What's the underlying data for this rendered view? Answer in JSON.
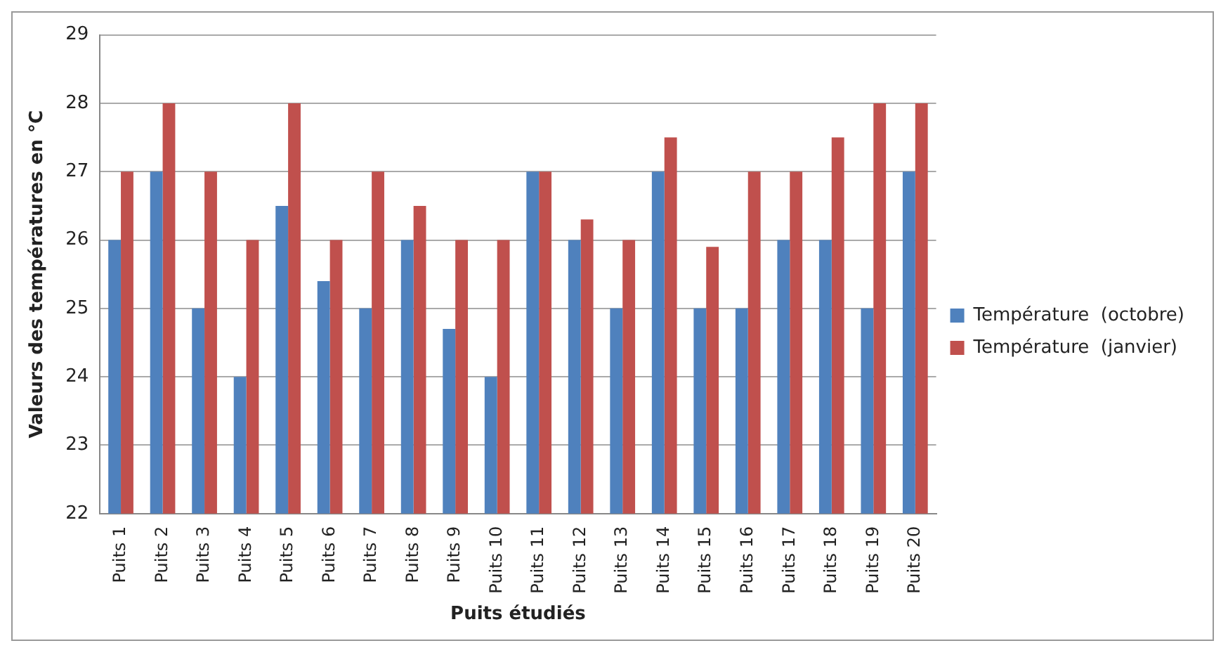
{
  "chart_data": {
    "type": "bar",
    "xlabel": "Puits étudiés",
    "ylabel": "Valeurs des températures en °C",
    "categories": [
      "Puits 1",
      "Puits 2",
      "Puits 3",
      "Puits 4",
      "Puits 5",
      "Puits 6",
      "Puits 7",
      "Puits 8",
      "Puits 9",
      "Puits 10",
      "Puits 11",
      "Puits 12",
      "Puits 13",
      "Puits 14",
      "Puits 15",
      "Puits 16",
      "Puits 17",
      "Puits 18",
      "Puits 19",
      "Puits 20"
    ],
    "series": [
      {
        "name": "Température  (octobre)",
        "color": "#4f81bd",
        "values": [
          26,
          27,
          25,
          24,
          26.5,
          25.4,
          25,
          26,
          24.7,
          24,
          27,
          26,
          25,
          27,
          25,
          25,
          26,
          26,
          25,
          27
        ]
      },
      {
        "name": "Température  (janvier)",
        "color": "#c0504d",
        "values": [
          27,
          28,
          27,
          26,
          28,
          26,
          27,
          26.5,
          26,
          26,
          27,
          26.3,
          26,
          27.5,
          25.9,
          27,
          27,
          27.5,
          28,
          28
        ]
      }
    ],
    "ylim": [
      22,
      29
    ],
    "yticks": [
      22,
      23,
      24,
      25,
      26,
      27,
      28,
      29
    ],
    "grid": "y",
    "legend": "right"
  }
}
